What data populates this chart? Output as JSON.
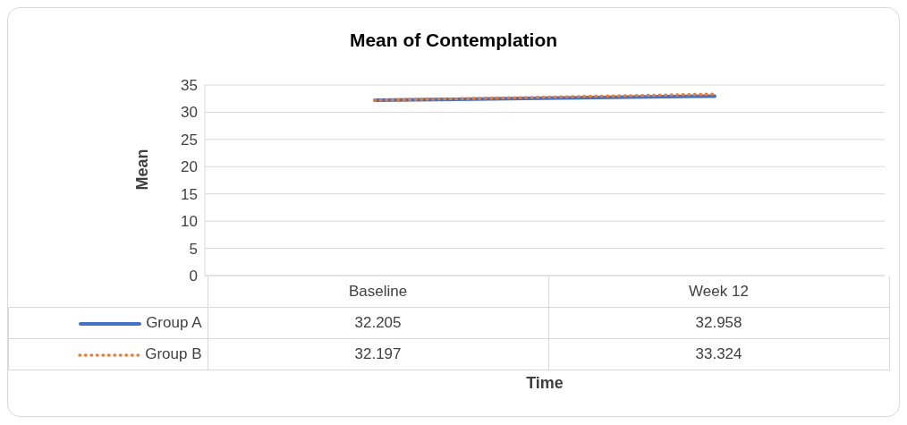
{
  "chart_data": {
    "type": "line",
    "title": "Mean of Contemplation",
    "xlabel": "Time",
    "ylabel": "Mean",
    "categories": [
      "Baseline",
      "Week 12"
    ],
    "series": [
      {
        "name": "Group A",
        "color": "#4472c4",
        "values": [
          32.205,
          32.958
        ],
        "line_style": "solid"
      },
      {
        "name": "Group B",
        "color": "#ed7d31",
        "values": [
          32.197,
          33.324
        ],
        "line_style": "dotted"
      }
    ],
    "ylim": [
      0,
      35
    ],
    "yticks": [
      0,
      5,
      10,
      15,
      20,
      25,
      30,
      35
    ],
    "grid": "y",
    "legend": "bottom",
    "data_labels": true,
    "marker": "none"
  }
}
